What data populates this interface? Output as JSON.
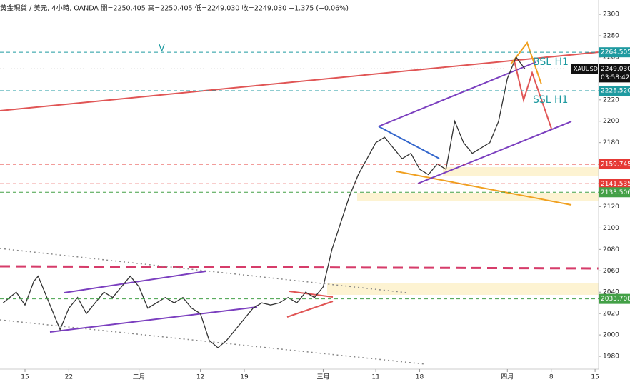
{
  "header": "黃金現貨 / 美元, 4小時, OANDA  開=2250.405 高=2250.405 低=2249.030 收=2249.030 −1.375 (−0.06%)",
  "chart_data": {
    "type": "line",
    "color": "#333333",
    "x": [
      -2.5,
      -1,
      0,
      1,
      1.5,
      2,
      3,
      4,
      5,
      6,
      7,
      8,
      9,
      10,
      11,
      12,
      13,
      14,
      15,
      16,
      17,
      18,
      19,
      20,
      21,
      22,
      23,
      24,
      25,
      26,
      27,
      28,
      29,
      30,
      31,
      32,
      33,
      34,
      35,
      36,
      37,
      38,
      39,
      40,
      41,
      42,
      43,
      44,
      45,
      46,
      47,
      48,
      49,
      50,
      51,
      52,
      53,
      54,
      55,
      56,
      57
    ],
    "values": [
      2030,
      2040,
      2028,
      2050,
      2055,
      2045,
      2025,
      2005,
      2025,
      2035,
      2020,
      2030,
      2040,
      2035,
      2045,
      2055,
      2045,
      2025,
      2030,
      2035,
      2030,
      2035,
      2025,
      2020,
      1995,
      1988,
      1995,
      2005,
      2015,
      2025,
      2030,
      2028,
      2030,
      2035,
      2030,
      2040,
      2035,
      2045,
      2080,
      2105,
      2130,
      2150,
      2165,
      2180,
      2185,
      2175,
      2165,
      2170,
      2155,
      2150,
      2160,
      2155,
      2200,
      2180,
      2170,
      2175,
      2180,
      2200,
      2240,
      2260,
      2249
    ],
    "xlim": [
      -2.85,
      65.4
    ],
    "xticks": [
      {
        "value": 0,
        "label": "15"
      },
      {
        "value": 5,
        "label": "22"
      },
      {
        "value": 13,
        "label": "二月"
      },
      {
        "value": 20,
        "label": "12"
      },
      {
        "value": 25,
        "label": "19"
      },
      {
        "value": 34,
        "label": "三月"
      },
      {
        "value": 40,
        "label": "11"
      },
      {
        "value": 45,
        "label": "18"
      },
      {
        "value": 55,
        "label": "四月"
      },
      {
        "value": 60,
        "label": "8"
      },
      {
        "value": 65,
        "label": "15"
      }
    ],
    "ylim": [
      1968,
      2313.4
    ],
    "yticks": [
      1980,
      2000,
      2020,
      2040,
      2060,
      2080,
      2100,
      2120,
      2140,
      2160,
      2180,
      2200,
      2220,
      2240,
      2260,
      2280,
      2300
    ],
    "price_tags": [
      {
        "value": 2264.505,
        "label": "2264.505",
        "color": "#1e9aa0"
      },
      {
        "value": 2228.52,
        "label": "2228.520",
        "color": "#1e9aa0"
      },
      {
        "value": 2159.745,
        "label": "2159.745",
        "color": "#e53935"
      },
      {
        "value": 2141.535,
        "label": "2141.535",
        "color": "#e53935"
      },
      {
        "value": 2133.506,
        "label": "2133.506",
        "color": "#43a047"
      },
      {
        "value": 2033.708,
        "label": "2033.708",
        "color": "#43a047"
      }
    ],
    "last_price": {
      "value": 2249.03,
      "label": "2249.030",
      "symbol": "XAUUSD",
      "countdown": "03:58:42"
    },
    "annotations": [
      "V",
      "BSL H1",
      "SSL H1"
    ]
  }
}
